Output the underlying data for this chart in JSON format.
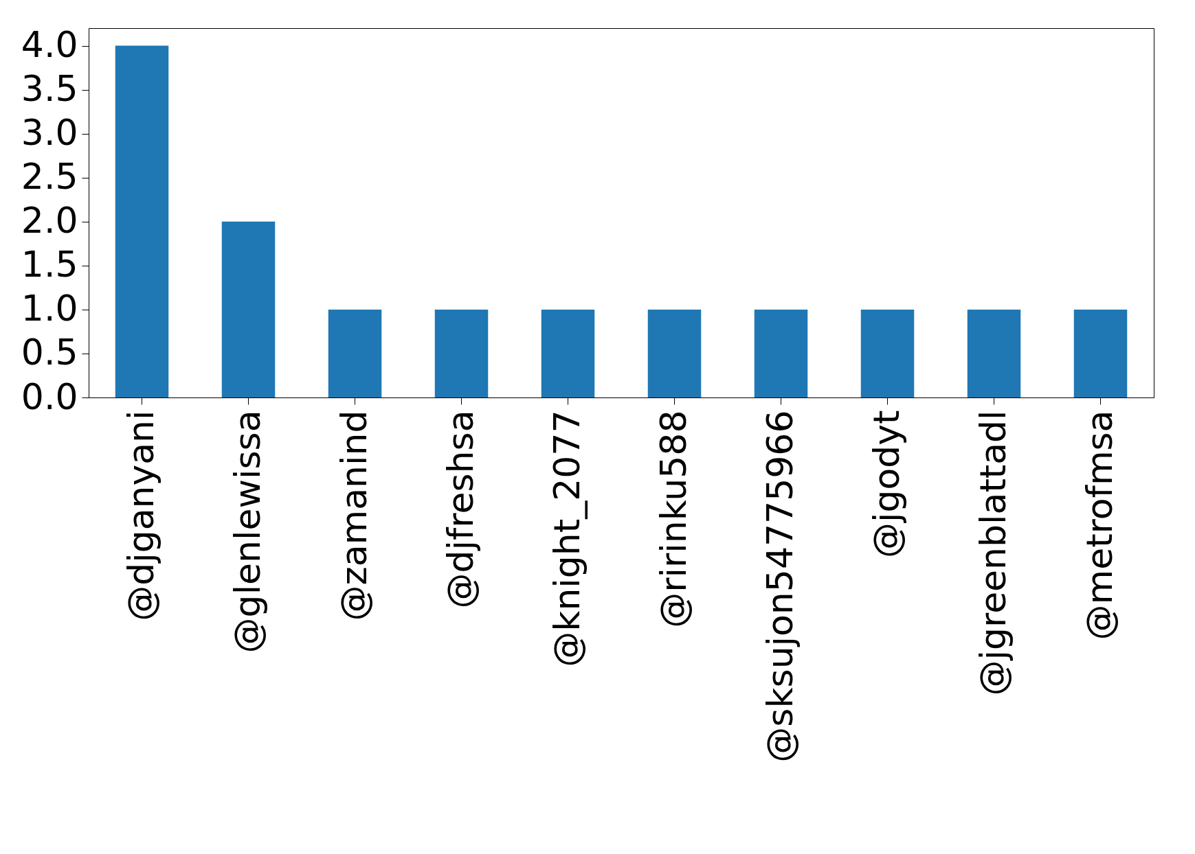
{
  "chart_data": {
    "type": "bar",
    "categories": [
      "@djganyani",
      "@glenlewissa",
      "@zamanind",
      "@djfreshsa",
      "@knight_2077",
      "@ririnku588",
      "@sksujon54775966",
      "@jgodyt",
      "@jgreenblattadl",
      "@metrofmsa"
    ],
    "values": [
      4,
      2,
      1,
      1,
      1,
      1,
      1,
      1,
      1,
      1
    ],
    "color": "#1f77b4",
    "ylim": [
      0,
      4.2
    ],
    "yticks": [
      {
        "value": 0,
        "label": "0.0"
      },
      {
        "value": 0.5,
        "label": "0.5"
      },
      {
        "value": 1,
        "label": "1.0"
      },
      {
        "value": 1.5,
        "label": "1.5"
      },
      {
        "value": 2,
        "label": "2.0"
      },
      {
        "value": 2.5,
        "label": "2.5"
      },
      {
        "value": 3,
        "label": "3.0"
      },
      {
        "value": 3.5,
        "label": "3.5"
      },
      {
        "value": 4,
        "label": "4.0"
      }
    ],
    "grid": false
  }
}
